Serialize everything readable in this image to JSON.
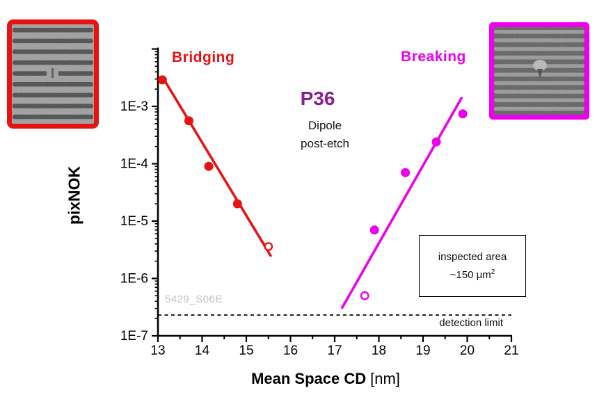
{
  "figure": {
    "bridging_label": "Bridging",
    "breaking_label": "Breaking",
    "title": "P36",
    "subtitle_line1": "Dipole",
    "subtitle_line2": "post-etch",
    "watermark": "5429_S06E",
    "ylabel": "pixNOK",
    "xlabel_bold": "Mean Space CD",
    "xlabel_unit": "[nm]",
    "inspected_area_line1": "inspected area",
    "inspected_area_value": "~150 ",
    "inspected_area_unit": "μm",
    "inspected_area_sup": "2",
    "detection_limit_label": "detection limit",
    "colors": {
      "bridging": "#e81212",
      "breaking": "#ee00ee",
      "title_purple": "#8b1f8f",
      "watermark_gray": "#c3c3c3",
      "axis_black": "#000000"
    },
    "sem_left_alt": "SEM line/space pattern with bridging defect",
    "sem_right_alt": "SEM line/space pattern with breaking defect"
  },
  "chart_data": {
    "type": "scatter",
    "title": "P36",
    "subtitle": "Dipole post-etch",
    "xlabel": "Mean Space CD [nm]",
    "ylabel": "pixNOK",
    "x_axis": {
      "min": 13,
      "max": 21,
      "major_step": 1,
      "minor_step": 0.5,
      "tick_labels": [
        "13",
        "14",
        "15",
        "16",
        "17",
        "18",
        "19",
        "20",
        "21"
      ]
    },
    "y_axis": {
      "scale": "log",
      "top_exp": -2,
      "bottom_exp": -7,
      "labeled_exps": [
        -3,
        -4,
        -5,
        -6,
        -7
      ],
      "tick_labels": [
        "1E-3",
        "1E-4",
        "1E-5",
        "1E-6",
        "1E-7"
      ]
    },
    "series": [
      {
        "name": "Bridging",
        "color": "#e81212",
        "points": [
          {
            "x": 13.1,
            "y": 0.0029,
            "filled": true
          },
          {
            "x": 13.7,
            "y": 0.00056,
            "filled": true
          },
          {
            "x": 14.15,
            "y": 9e-05,
            "filled": true
          },
          {
            "x": 14.8,
            "y": 2e-05,
            "filled": true
          },
          {
            "x": 15.5,
            "y": 3.6e-06,
            "filled": false
          }
        ],
        "fit_line": {
          "x1": 13.13,
          "y1": 0.003,
          "x2": 15.55,
          "y2": 2.5e-06
        }
      },
      {
        "name": "Breaking",
        "color": "#ee00ee",
        "points": [
          {
            "x": 17.68,
            "y": 5e-07,
            "filled": false
          },
          {
            "x": 17.9,
            "y": 7e-06,
            "filled": true
          },
          {
            "x": 18.6,
            "y": 7e-05,
            "filled": true
          },
          {
            "x": 19.3,
            "y": 0.00024,
            "filled": true
          },
          {
            "x": 19.9,
            "y": 0.00074,
            "filled": true
          }
        ],
        "fit_line": {
          "x1": 17.17,
          "y1": 3.1e-07,
          "x2": 19.87,
          "y2": 0.0014
        }
      }
    ],
    "detection_limit": {
      "value": 2.3e-07,
      "label": "detection limit"
    },
    "annotations": [
      {
        "text": "inspected area ~150 μm²",
        "kind": "boxed"
      },
      {
        "text": "5429_S06E",
        "kind": "watermark"
      }
    ],
    "legend": "none",
    "grid": false
  }
}
